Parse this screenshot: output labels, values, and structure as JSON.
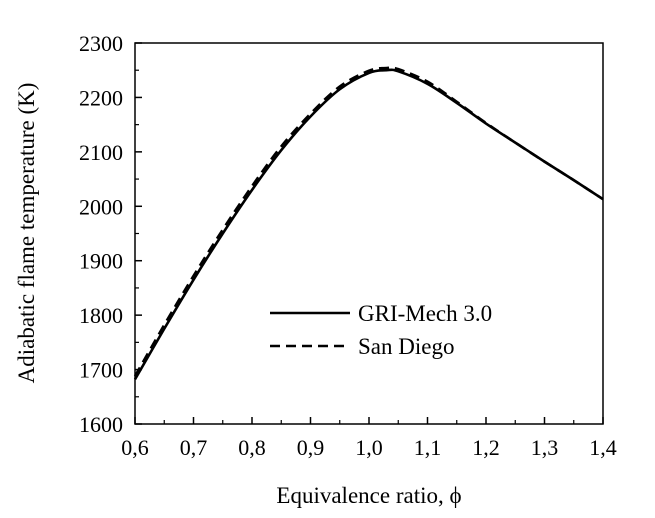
{
  "chart_data": {
    "type": "line",
    "title": "",
    "xlabel": "Equivalence ratio, ϕ",
    "ylabel": "Adiabatic flame temperature (K)",
    "xlim": [
      0.6,
      1.4
    ],
    "ylim": [
      1600,
      2300
    ],
    "x_tick_labels": [
      "0,6",
      "0,7",
      "0,8",
      "0,9",
      "1,0",
      "1,1",
      "1,2",
      "1,3",
      "1,4"
    ],
    "y_tick_labels": [
      "1600",
      "1700",
      "1800",
      "1900",
      "2000",
      "2100",
      "2200",
      "2300"
    ],
    "grid": false,
    "legend_position": "center-right",
    "series": [
      {
        "name": "GRI-Mech 3.0",
        "style": "solid",
        "color": "#000000",
        "x": [
          0.6,
          0.65,
          0.7,
          0.75,
          0.8,
          0.85,
          0.9,
          0.95,
          1.0,
          1.03,
          1.05,
          1.1,
          1.15,
          1.2,
          1.25,
          1.3,
          1.35,
          1.4
        ],
        "y": [
          1682,
          1775,
          1865,
          1950,
          2030,
          2103,
          2165,
          2215,
          2245,
          2250,
          2248,
          2225,
          2190,
          2152,
          2117,
          2082,
          2048,
          2013
        ]
      },
      {
        "name": "San Diego",
        "style": "dashed",
        "color": "#000000",
        "x": [
          0.6,
          0.65,
          0.7,
          0.75,
          0.8,
          0.85,
          0.9,
          0.95,
          1.0,
          1.03,
          1.05,
          1.1,
          1.15,
          1.2,
          1.25,
          1.3,
          1.35,
          1.4
        ],
        "y": [
          1688,
          1782,
          1872,
          1957,
          2037,
          2110,
          2170,
          2220,
          2249,
          2254,
          2252,
          2229,
          2192,
          2153,
          2117,
          2082,
          2048,
          2013
        ]
      }
    ]
  }
}
